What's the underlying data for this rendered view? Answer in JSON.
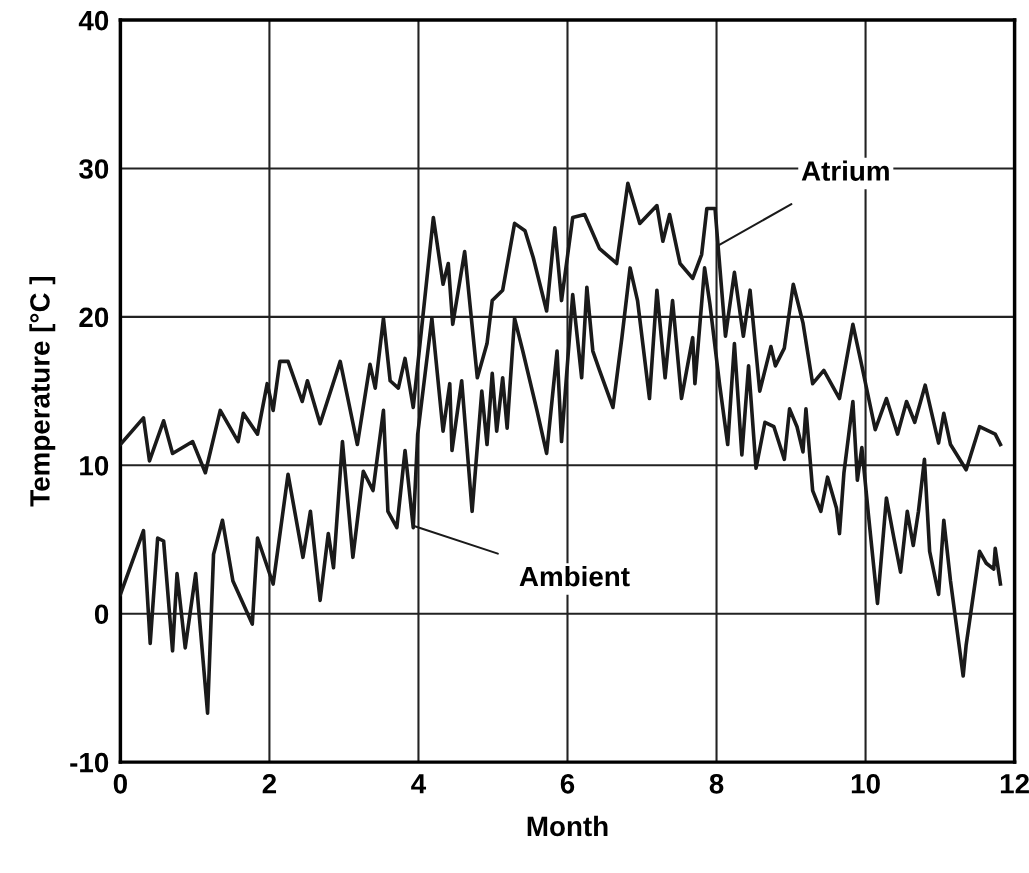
{
  "chart_data": {
    "type": "line",
    "xlabel": "Month",
    "ylabel": "Temperature [°C ]",
    "xlim": [
      0,
      12
    ],
    "xticks": [
      0,
      2,
      4,
      6,
      8,
      10,
      12
    ],
    "ylim": [
      -10,
      40
    ],
    "yticks": [
      -10,
      0,
      10,
      20,
      30,
      40
    ],
    "grid": true,
    "legend": false,
    "marker": "none",
    "line_style": "solid",
    "series": [
      {
        "color": "#1a1a1a",
        "x": [
          0,
          0.31,
          0.39,
          0.58,
          0.7,
          0.97,
          1.14,
          1.34,
          1.58,
          1.65,
          1.84,
          1.97,
          2.05,
          2.14,
          2.25,
          2.44,
          2.51,
          2.68,
          2.95,
          3.18,
          3.35,
          3.42,
          3.53,
          3.62,
          3.73,
          3.82,
          3.93,
          4.2,
          4.33,
          4.4,
          4.46,
          4.62,
          4.79,
          4.92,
          4.99,
          5.13,
          5.29,
          5.43,
          5.54,
          5.72,
          5.83,
          5.92,
          6.07,
          6.23,
          6.43,
          6.66,
          6.81,
          6.97,
          7.2,
          7.28,
          7.37,
          7.51,
          7.68,
          7.8,
          7.87,
          7.98,
          8.12,
          8.24,
          8.36,
          8.45,
          8.58,
          8.73,
          8.79,
          8.91,
          9.03,
          9.16,
          9.29,
          9.44,
          9.65,
          9.83,
          9.95,
          10.13,
          10.28,
          10.43,
          10.55,
          10.66,
          10.8,
          10.98,
          11.05,
          11.14,
          11.35,
          11.53,
          11.74,
          11.81
        ],
        "values": [
          11.4,
          13.2,
          10.3,
          13.0,
          10.8,
          11.6,
          9.5,
          13.7,
          11.6,
          13.5,
          12.1,
          15.5,
          13.7,
          17.0,
          17.0,
          14.3,
          15.7,
          12.8,
          17.0,
          11.4,
          16.8,
          15.2,
          19.9,
          15.7,
          15.2,
          17.2,
          13.9,
          26.7,
          22.2,
          23.6,
          19.5,
          24.4,
          15.9,
          18.2,
          21.1,
          21.8,
          26.3,
          25.8,
          24.0,
          20.4,
          26.0,
          21.1,
          26.7,
          26.9,
          24.6,
          23.6,
          29.0,
          26.3,
          27.5,
          25.1,
          26.9,
          23.6,
          22.6,
          24.2,
          27.3,
          27.3,
          18.7,
          23.0,
          18.7,
          21.8,
          15.0,
          18.0,
          16.7,
          17.9,
          22.2,
          19.6,
          15.5,
          16.4,
          14.5,
          19.5,
          16.7,
          12.4,
          14.5,
          12.1,
          14.3,
          12.9,
          15.4,
          11.5,
          13.5,
          11.4,
          9.7,
          12.6,
          12.1,
          11.4
        ]
      },
      {
        "color": "#1a1a1a",
        "x": [
          0,
          0.31,
          0.4,
          0.5,
          0.58,
          0.7,
          0.76,
          0.87,
          1.01,
          1.17,
          1.25,
          1.37,
          1.51,
          1.77,
          1.84,
          2.05,
          2.25,
          2.45,
          2.55,
          2.68,
          2.79,
          2.86,
          2.98,
          3.12,
          3.26,
          3.39,
          3.53,
          3.59,
          3.71,
          3.82,
          3.93,
          3.99,
          4.18,
          4.33,
          4.42,
          4.45,
          4.58,
          4.72,
          4.85,
          4.92,
          4.99,
          5.05,
          5.13,
          5.19,
          5.29,
          5.4,
          5.59,
          5.72,
          5.86,
          5.92,
          6.07,
          6.19,
          6.26,
          6.34,
          6.43,
          6.61,
          6.73,
          6.84,
          6.94,
          7.1,
          7.2,
          7.31,
          7.41,
          7.53,
          7.68,
          7.71,
          7.84,
          7.91,
          8.04,
          8.15,
          8.24,
          8.34,
          8.43,
          8.53,
          8.65,
          8.77,
          8.91,
          8.98,
          9.08,
          9.16,
          9.2,
          9.29,
          9.4,
          9.49,
          9.61,
          9.65,
          9.71,
          9.83,
          9.89,
          9.95,
          10.04,
          10.16,
          10.28,
          10.38,
          10.47,
          10.56,
          10.64,
          10.71,
          10.79,
          10.86,
          10.98,
          11.05,
          11.14,
          11.31,
          11.35,
          11.53,
          11.62,
          11.72,
          11.74,
          11.81
        ],
        "values": [
          1.3,
          5.6,
          -2.0,
          5.1,
          4.9,
          -2.5,
          2.7,
          -2.3,
          2.7,
          -6.7,
          4.0,
          6.3,
          2.2,
          -0.7,
          5.1,
          2.0,
          9.4,
          3.8,
          6.9,
          0.9,
          5.4,
          3.1,
          11.6,
          3.8,
          9.6,
          8.3,
          13.7,
          6.9,
          5.8,
          11.0,
          5.8,
          12.1,
          19.9,
          12.3,
          15.5,
          11.0,
          15.7,
          6.9,
          15.0,
          11.4,
          16.2,
          12.3,
          15.9,
          12.5,
          19.9,
          17.7,
          13.7,
          10.8,
          17.7,
          11.6,
          21.5,
          15.9,
          22.0,
          17.7,
          16.4,
          13.9,
          18.6,
          23.3,
          21.1,
          14.5,
          21.8,
          15.9,
          21.1,
          14.5,
          18.6,
          15.5,
          23.3,
          20.9,
          15.5,
          11.4,
          18.2,
          10.7,
          16.7,
          9.8,
          12.9,
          12.6,
          10.4,
          13.8,
          12.6,
          10.9,
          13.8,
          8.3,
          6.9,
          9.2,
          7.1,
          5.4,
          9.5,
          14.3,
          9.0,
          11.2,
          6.6,
          0.7,
          7.8,
          5.1,
          2.8,
          6.9,
          4.6,
          6.9,
          10.4,
          4.2,
          1.3,
          6.3,
          2.2,
          -4.2,
          -2.1,
          4.2,
          3.4,
          3.0,
          4.4,
          2.0
        ]
      }
    ],
    "annotations": [
      {
        "text": "Atrium",
        "x": 8.02,
        "y": 24.8
      },
      {
        "text": "Ambient",
        "x": 3.95,
        "y": 5.9
      }
    ]
  }
}
